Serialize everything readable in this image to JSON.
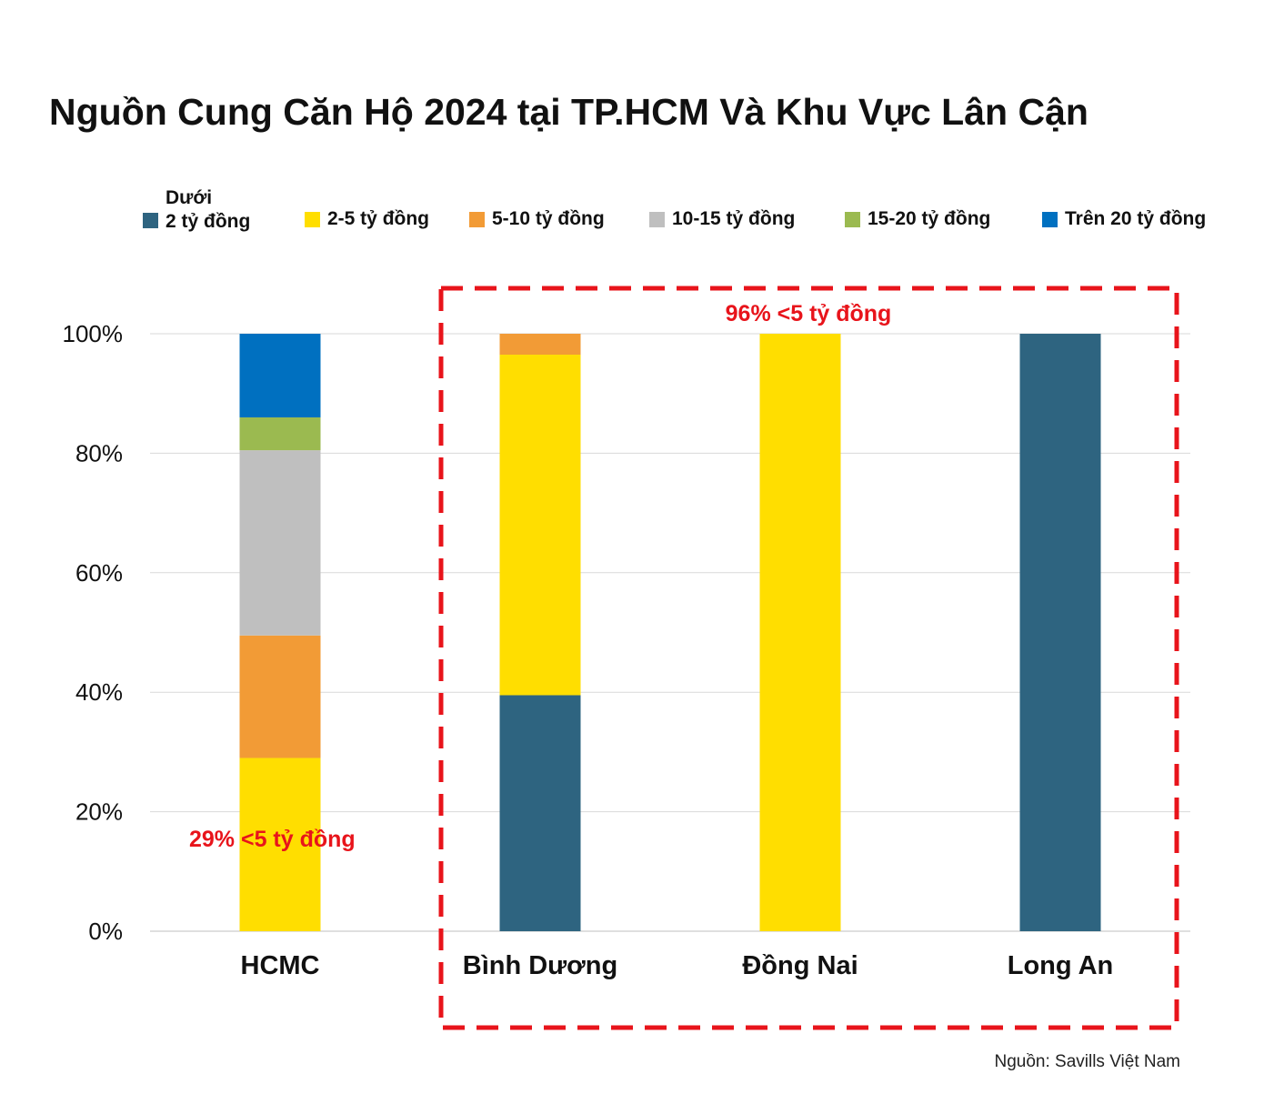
{
  "chart_data": {
    "type": "bar",
    "stacked": true,
    "title": "Nguồn Cung Căn Hộ 2024 tại TP.HCM Và Khu Vực Lân Cận",
    "categories": [
      "HCMC",
      "Bình Dương",
      "Đồng Nai",
      "Long An"
    ],
    "series": [
      {
        "name": "Dưới 2 tỷ đồng",
        "name_line1": "Dưới",
        "name_line2": "2 tỷ đồng",
        "color": "#2e6480",
        "values": [
          0,
          39.5,
          0,
          100
        ]
      },
      {
        "name": "2-5 tỷ đồng",
        "color": "#ffde00",
        "values": [
          29,
          57,
          100,
          0
        ]
      },
      {
        "name": "5-10 tỷ đồng",
        "color": "#f29b36",
        "values": [
          20.5,
          3.5,
          0,
          0
        ]
      },
      {
        "name": "10-15 tỷ đồng",
        "color": "#bfbfbf",
        "values": [
          31,
          0,
          0,
          0
        ]
      },
      {
        "name": "15-20 tỷ đồng",
        "color": "#9bba50",
        "values": [
          5.5,
          0,
          0,
          0
        ]
      },
      {
        "name": "Trên 20 tỷ đồng",
        "color": "#0070c0",
        "values": [
          14,
          0,
          0,
          0
        ]
      }
    ],
    "ylim": [
      0,
      100
    ],
    "yticks": [
      "0%",
      "20%",
      "40%",
      "60%",
      "80%",
      "100%"
    ],
    "grid": true,
    "legend_position": "top",
    "annotations": [
      {
        "text": "29% <5 tỷ đồng",
        "color": "#e8141b"
      },
      {
        "text": "96% <5 tỷ đồng",
        "color": "#e8141b",
        "highlight_categories": [
          "Bình Dương",
          "Đồng Nai",
          "Long An"
        ]
      }
    ]
  },
  "source": "Nguồn: Savills Việt Nam"
}
